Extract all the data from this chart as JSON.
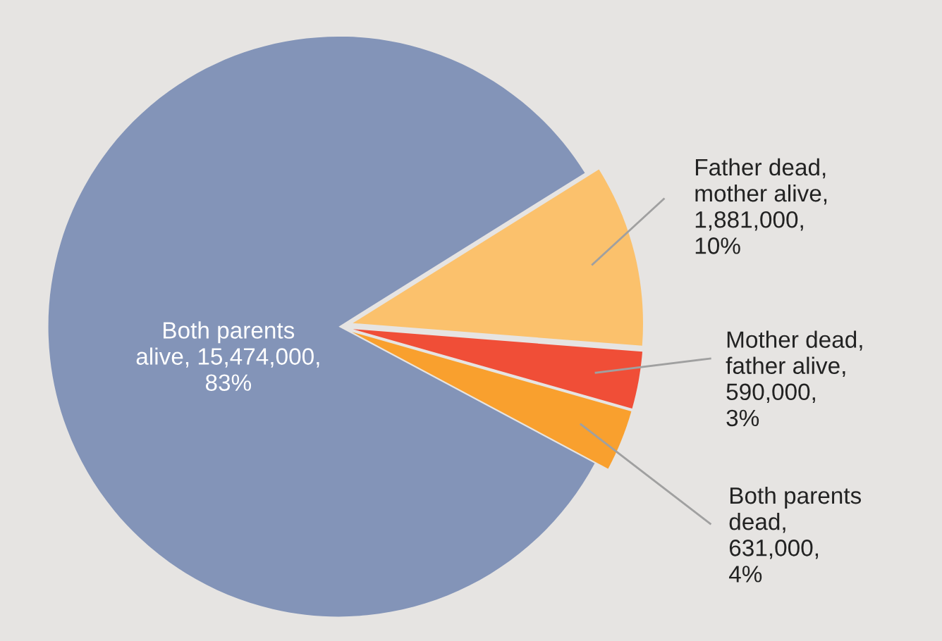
{
  "chart_data": {
    "type": "pie",
    "categories": [
      "Both parents\nalive, 15,474,000,\n83%",
      "Both parents\ndead,\n631,000,\n4%",
      "Mother dead,\nfather alive,\n590,000,\n3%",
      "Father dead,\nmother alive,\n1,881,000,\n10%"
    ],
    "values": [
      15474000,
      631000,
      590000,
      1881000
    ],
    "colors": [
      "#8394b8",
      "#f9a02e",
      "#f04e37",
      "#fbc16c"
    ],
    "legend": false
  }
}
